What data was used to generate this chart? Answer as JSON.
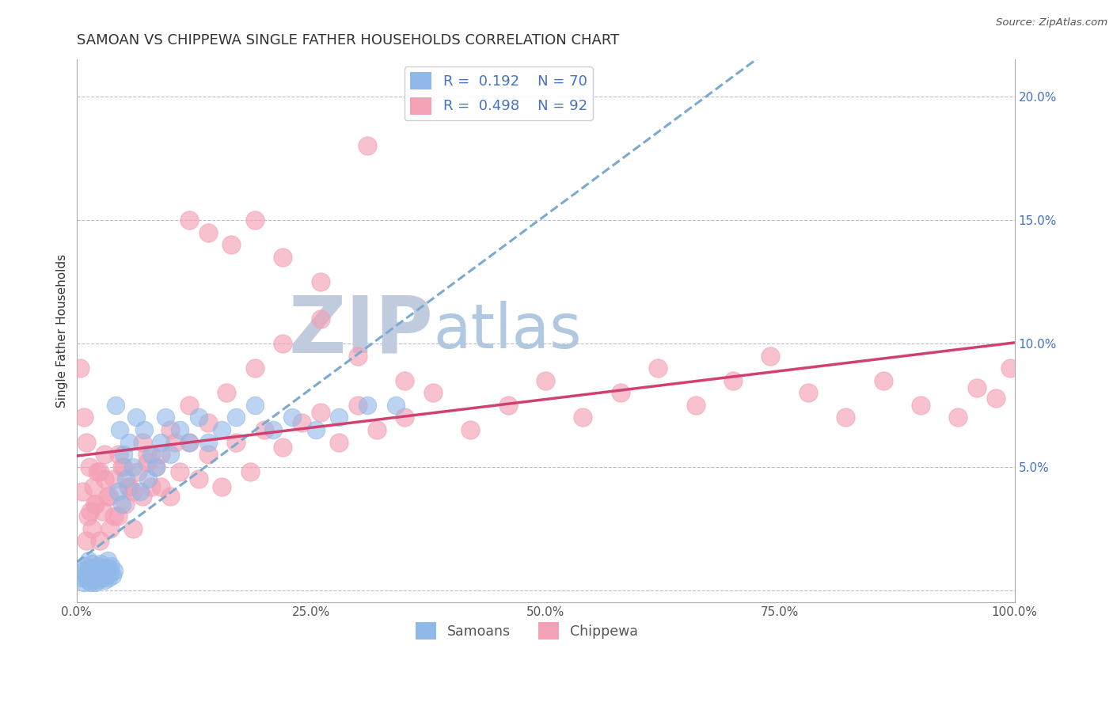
{
  "title": "SAMOAN VS CHIPPEWA SINGLE FATHER HOUSEHOLDS CORRELATION CHART",
  "source": "Source: ZipAtlas.com",
  "ylabel": "Single Father Households",
  "legend_labels": [
    "Samoans",
    "Chippewa"
  ],
  "legend_r": [
    "0.192",
    "0.498"
  ],
  "legend_n": [
    "70",
    "92"
  ],
  "xlim": [
    0,
    1.0
  ],
  "ylim": [
    -0.005,
    0.215
  ],
  "xticks": [
    0.0,
    0.25,
    0.5,
    0.75,
    1.0
  ],
  "xtick_labels": [
    "0.0%",
    "25.0%",
    "50.0%",
    "75.0%",
    "100.0%"
  ],
  "yticks": [
    0.0,
    0.05,
    0.1,
    0.15,
    0.2
  ],
  "ytick_labels_right": [
    "",
    "5.0%",
    "10.0%",
    "15.0%",
    "20.0%"
  ],
  "color_samoan": "#90B8E8",
  "color_chippewa": "#F4A0B5",
  "color_line_samoan": "#7AAAD0",
  "color_line_chippewa": "#D04070",
  "background_color": "#FFFFFF",
  "grid_color": "#BBBBCC",
  "watermark_zip": "ZIP",
  "watermark_atlas": "atlas",
  "watermark_color_zip": "#C0CCDD",
  "watermark_color_atlas": "#B0C8E0",
  "title_fontsize": 13,
  "axis_label_fontsize": 11,
  "tick_fontsize": 11,
  "legend_text_color": "#4472C4",
  "samoan_x": [
    0.005,
    0.007,
    0.008,
    0.01,
    0.01,
    0.011,
    0.012,
    0.013,
    0.013,
    0.014,
    0.015,
    0.015,
    0.016,
    0.016,
    0.017,
    0.018,
    0.018,
    0.019,
    0.02,
    0.02,
    0.021,
    0.022,
    0.022,
    0.023,
    0.024,
    0.025,
    0.026,
    0.027,
    0.028,
    0.029,
    0.03,
    0.031,
    0.032,
    0.033,
    0.034,
    0.035,
    0.036,
    0.037,
    0.038,
    0.04,
    0.042,
    0.044,
    0.046,
    0.048,
    0.05,
    0.053,
    0.056,
    0.06,
    0.064,
    0.068,
    0.072,
    0.076,
    0.08,
    0.085,
    0.09,
    0.095,
    0.1,
    0.11,
    0.12,
    0.13,
    0.14,
    0.155,
    0.17,
    0.19,
    0.21,
    0.23,
    0.255,
    0.28,
    0.31,
    0.34
  ],
  "samoan_y": [
    0.005,
    0.008,
    0.003,
    0.006,
    0.01,
    0.007,
    0.004,
    0.009,
    0.012,
    0.006,
    0.003,
    0.008,
    0.011,
    0.005,
    0.007,
    0.004,
    0.009,
    0.006,
    0.003,
    0.008,
    0.005,
    0.01,
    0.007,
    0.004,
    0.008,
    0.006,
    0.011,
    0.005,
    0.009,
    0.007,
    0.004,
    0.008,
    0.006,
    0.012,
    0.005,
    0.009,
    0.007,
    0.01,
    0.006,
    0.008,
    0.075,
    0.04,
    0.065,
    0.035,
    0.055,
    0.045,
    0.06,
    0.05,
    0.07,
    0.04,
    0.065,
    0.045,
    0.055,
    0.05,
    0.06,
    0.07,
    0.055,
    0.065,
    0.06,
    0.07,
    0.06,
    0.065,
    0.07,
    0.075,
    0.065,
    0.07,
    0.065,
    0.07,
    0.075,
    0.075
  ],
  "chippewa_x": [
    0.004,
    0.006,
    0.008,
    0.01,
    0.012,
    0.014,
    0.016,
    0.018,
    0.02,
    0.022,
    0.025,
    0.028,
    0.03,
    0.033,
    0.036,
    0.04,
    0.044,
    0.048,
    0.052,
    0.056,
    0.06,
    0.065,
    0.07,
    0.075,
    0.08,
    0.09,
    0.1,
    0.11,
    0.12,
    0.13,
    0.14,
    0.155,
    0.17,
    0.185,
    0.2,
    0.22,
    0.24,
    0.26,
    0.28,
    0.3,
    0.32,
    0.35,
    0.38,
    0.42,
    0.46,
    0.5,
    0.54,
    0.58,
    0.62,
    0.66,
    0.7,
    0.74,
    0.78,
    0.82,
    0.86,
    0.9,
    0.94,
    0.96,
    0.98,
    0.995,
    0.015,
    0.025,
    0.035,
    0.045,
    0.055,
    0.07,
    0.085,
    0.1,
    0.12,
    0.14,
    0.16,
    0.19,
    0.22,
    0.26,
    0.3,
    0.35,
    0.01,
    0.02,
    0.03,
    0.04,
    0.05,
    0.06,
    0.075,
    0.09,
    0.105,
    0.12,
    0.14,
    0.165,
    0.19,
    0.22,
    0.26,
    0.31
  ],
  "chippewa_y": [
    0.09,
    0.04,
    0.07,
    0.06,
    0.03,
    0.05,
    0.025,
    0.042,
    0.035,
    0.048,
    0.02,
    0.032,
    0.055,
    0.038,
    0.025,
    0.045,
    0.03,
    0.05,
    0.035,
    0.042,
    0.025,
    0.048,
    0.038,
    0.052,
    0.042,
    0.055,
    0.038,
    0.048,
    0.06,
    0.045,
    0.055,
    0.042,
    0.06,
    0.048,
    0.065,
    0.058,
    0.068,
    0.072,
    0.06,
    0.075,
    0.065,
    0.07,
    0.08,
    0.065,
    0.075,
    0.085,
    0.07,
    0.08,
    0.09,
    0.075,
    0.085,
    0.095,
    0.08,
    0.07,
    0.085,
    0.075,
    0.07,
    0.082,
    0.078,
    0.09,
    0.032,
    0.048,
    0.038,
    0.055,
    0.042,
    0.06,
    0.05,
    0.065,
    0.075,
    0.068,
    0.08,
    0.09,
    0.1,
    0.11,
    0.095,
    0.085,
    0.02,
    0.035,
    0.045,
    0.03,
    0.05,
    0.04,
    0.055,
    0.042,
    0.06,
    0.15,
    0.145,
    0.14,
    0.15,
    0.135,
    0.125,
    0.18
  ]
}
